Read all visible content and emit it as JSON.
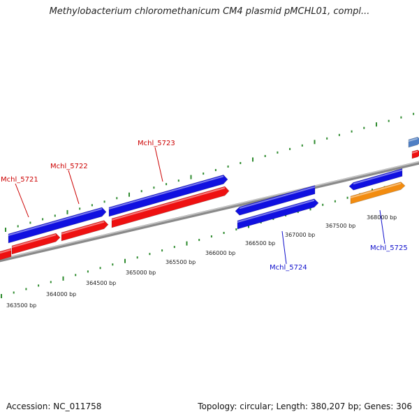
{
  "title": "Methylobacterium chloromethanicum CM4 plasmid pMCHL01, compl...",
  "footer": {
    "accession": "Accession: NC_011758",
    "summary": "Topology: circular; Length: 380,207 bp; Genes: 306"
  },
  "colors": {
    "forward_strand": "#1010e0",
    "reverse_strand": "#ee1111",
    "orange_feature": "#f28c10",
    "steelblue_feature": "#4f7fc4",
    "backbone": "#8a8a8a",
    "tick": "#2e8b2e",
    "forward_label": "#1010cc",
    "reverse_label": "#cc0000"
  },
  "scale_labels": [
    "363500 bp",
    "364000 bp",
    "364500 bp",
    "365000 bp",
    "365500 bp",
    "366000 bp",
    "366500 bp",
    "367000 bp",
    "367500 bp",
    "368000 bp"
  ],
  "gene_labels": [
    {
      "id": "Mchl_5721",
      "strand": "reverse"
    },
    {
      "id": "Mchl_5722",
      "strand": "reverse"
    },
    {
      "id": "Mchl_5723",
      "strand": "reverse"
    },
    {
      "id": "Mchl_5724",
      "strand": "forward"
    },
    {
      "id": "Mchl_5725",
      "strand": "forward"
    }
  ]
}
